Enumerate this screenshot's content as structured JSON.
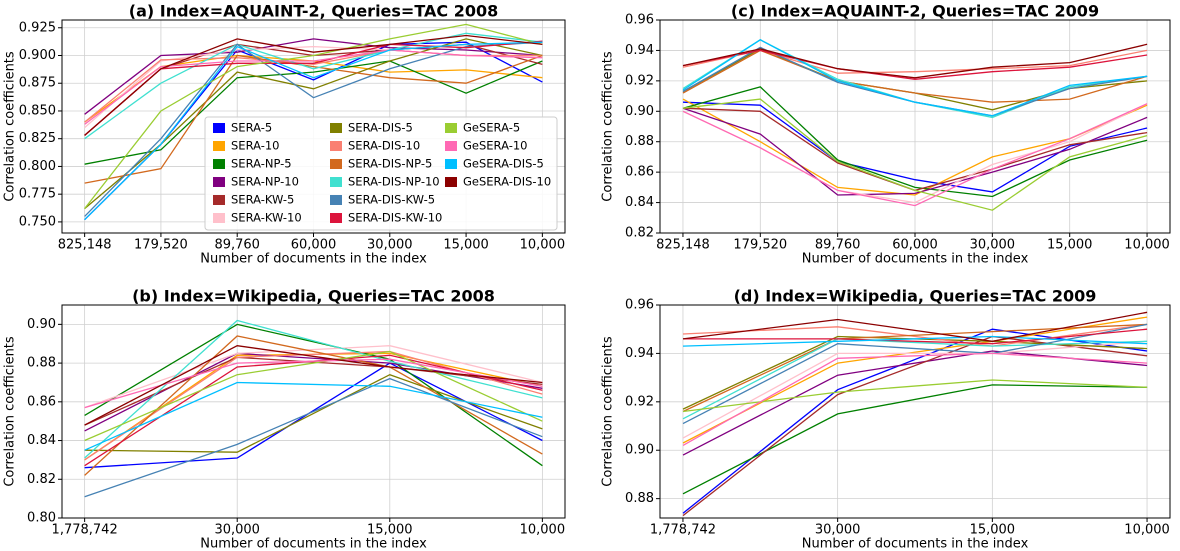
{
  "chart_data": [
    {
      "type": "line",
      "title": "(a) Index=AQUAINT-2, Queries=TAC 2008",
      "x_label": "Number of documents in the index",
      "y_label": "Correlation coefficients",
      "categories": [
        "825,148",
        "179,520",
        "89,760",
        "60,000",
        "30,000",
        "15,000",
        "10,000"
      ],
      "ylim": [
        0.74,
        0.932
      ],
      "yticks": [
        {
          "value": 0.75,
          "label": "0.750"
        },
        {
          "value": 0.775,
          "label": "0.775"
        },
        {
          "value": 0.8,
          "label": "0.800"
        },
        {
          "value": 0.825,
          "label": "0.825"
        },
        {
          "value": 0.85,
          "label": "0.850"
        },
        {
          "value": 0.875,
          "label": "0.875"
        },
        {
          "value": 0.9,
          "label": "0.900"
        },
        {
          "value": 0.925,
          "label": "0.925"
        }
      ],
      "grid": true,
      "legend": "lower center",
      "series": [
        {
          "name": "SERA-5",
          "color": "#0000ff",
          "values": [
            0.752,
            0.82,
            0.905,
            0.878,
            0.91,
            0.912,
            0.876
          ]
        },
        {
          "name": "SERA-10",
          "color": "#ffa500",
          "values": [
            0.84,
            0.89,
            0.9,
            0.895,
            0.885,
            0.887,
            0.88
          ]
        },
        {
          "name": "SERA-NP-5",
          "color": "#008000",
          "values": [
            0.802,
            0.815,
            0.88,
            0.885,
            0.895,
            0.866,
            0.895
          ]
        },
        {
          "name": "SERA-NP-10",
          "color": "#800080",
          "values": [
            0.847,
            0.9,
            0.903,
            0.915,
            0.907,
            0.905,
            0.9
          ]
        },
        {
          "name": "SERA-KW-5",
          "color": "#a52a2a",
          "values": [
            0.828,
            0.888,
            0.91,
            0.9,
            0.905,
            0.91,
            0.892
          ]
        },
        {
          "name": "SERA-KW-10",
          "color": "#ffc0cb",
          "values": [
            0.835,
            0.895,
            0.905,
            0.908,
            0.905,
            0.9,
            0.9
          ]
        },
        {
          "name": "SERA-DIS-5",
          "color": "#808000",
          "values": [
            0.762,
            0.82,
            0.885,
            0.87,
            0.895,
            0.915,
            0.9
          ]
        },
        {
          "name": "SERA-DIS-10",
          "color": "#fa8072",
          "values": [
            0.84,
            0.896,
            0.898,
            0.892,
            0.905,
            0.9,
            0.9
          ]
        },
        {
          "name": "SERA-DIS-NP-5",
          "color": "#d2691e",
          "values": [
            0.785,
            0.798,
            0.9,
            0.89,
            0.88,
            0.875,
            0.9
          ]
        },
        {
          "name": "SERA-DIS-NP-10",
          "color": "#40e0d0",
          "values": [
            0.825,
            0.875,
            0.91,
            0.888,
            0.905,
            0.92,
            0.912
          ]
        },
        {
          "name": "SERA-DIS-KW-5",
          "color": "#4682b4",
          "values": [
            0.755,
            0.825,
            0.91,
            0.862,
            0.888,
            0.908,
            0.912
          ]
        },
        {
          "name": "SERA-DIS-KW-10",
          "color": "#dc143c",
          "values": [
            0.828,
            0.888,
            0.893,
            0.893,
            0.91,
            0.907,
            0.913
          ]
        },
        {
          "name": "GeSERA-5",
          "color": "#9acd32",
          "values": [
            0.762,
            0.85,
            0.89,
            0.9,
            0.915,
            0.928,
            0.91
          ]
        },
        {
          "name": "GeSERA-10",
          "color": "#ff69b4",
          "values": [
            0.838,
            0.89,
            0.895,
            0.895,
            0.905,
            0.9,
            0.898
          ]
        },
        {
          "name": "GeSERA-DIS-5",
          "color": "#00bfff",
          "values": [
            0.752,
            0.82,
            0.908,
            0.88,
            0.905,
            0.91,
            0.912
          ]
        },
        {
          "name": "GeSERA-DIS-10",
          "color": "#8b0000",
          "values": [
            0.828,
            0.888,
            0.915,
            0.903,
            0.91,
            0.918,
            0.91
          ]
        }
      ]
    },
    {
      "type": "line",
      "title": "(c) Index=AQUAINT-2, Queries=TAC 2009",
      "x_label": "Number of documents in the index",
      "y_label": "Correlation coefficients",
      "categories": [
        "825,148",
        "179,520",
        "89,760",
        "60,000",
        "30,000",
        "15,000",
        "10,000"
      ],
      "ylim": [
        0.82,
        0.96
      ],
      "yticks": [
        0.82,
        0.84,
        0.86,
        0.88,
        {
          "value": 0.9,
          "label": "0.90"
        },
        0.92,
        0.94,
        0.96
      ],
      "grid": true,
      "series": [
        {
          "name": "SERA-5",
          "color": "#0000ff",
          "values": [
            0.906,
            0.904,
            0.867,
            0.855,
            0.847,
            0.877,
            0.889
          ]
        },
        {
          "name": "SERA-10",
          "color": "#ffa500",
          "values": [
            0.908,
            0.88,
            0.85,
            0.845,
            0.87,
            0.882,
            0.904
          ]
        },
        {
          "name": "SERA-NP-5",
          "color": "#008000",
          "values": [
            0.902,
            0.916,
            0.868,
            0.85,
            0.844,
            0.868,
            0.881
          ]
        },
        {
          "name": "SERA-NP-10",
          "color": "#800080",
          "values": [
            0.902,
            0.885,
            0.845,
            0.846,
            0.86,
            0.875,
            0.896
          ]
        },
        {
          "name": "SERA-KW-5",
          "color": "#a52a2a",
          "values": [
            0.902,
            0.9,
            0.866,
            0.848,
            0.862,
            0.878,
            0.886
          ]
        },
        {
          "name": "SERA-KW-10",
          "color": "#ffc0cb",
          "values": [
            0.9,
            0.876,
            0.848,
            0.84,
            0.865,
            0.88,
            0.905
          ]
        },
        {
          "name": "SERA-DIS-5",
          "color": "#808000",
          "values": [
            0.913,
            0.941,
            0.92,
            0.912,
            0.901,
            0.915,
            0.92
          ]
        },
        {
          "name": "SERA-DIS-10",
          "color": "#fa8072",
          "values": [
            0.929,
            0.94,
            0.925,
            0.926,
            0.928,
            0.93,
            0.94
          ]
        },
        {
          "name": "SERA-DIS-NP-5",
          "color": "#d2691e",
          "values": [
            0.912,
            0.94,
            0.92,
            0.912,
            0.906,
            0.908,
            0.923
          ]
        },
        {
          "name": "SERA-DIS-NP-10",
          "color": "#40e0d0",
          "values": [
            0.915,
            0.947,
            0.921,
            0.906,
            0.896,
            0.916,
            0.923
          ]
        },
        {
          "name": "SERA-DIS-KW-5",
          "color": "#4682b4",
          "values": [
            0.913,
            0.942,
            0.919,
            0.906,
            0.897,
            0.915,
            0.923
          ]
        },
        {
          "name": "SERA-DIS-KW-10",
          "color": "#dc143c",
          "values": [
            0.93,
            0.94,
            0.928,
            0.921,
            0.926,
            0.929,
            0.937
          ]
        },
        {
          "name": "GeSERA-5",
          "color": "#9acd32",
          "values": [
            0.902,
            0.908,
            0.867,
            0.848,
            0.835,
            0.87,
            0.884
          ]
        },
        {
          "name": "GeSERA-10",
          "color": "#ff69b4",
          "values": [
            0.9,
            0.876,
            0.848,
            0.838,
            0.862,
            0.882,
            0.905
          ]
        },
        {
          "name": "GeSERA-DIS-5",
          "color": "#00bfff",
          "values": [
            0.914,
            0.947,
            0.92,
            0.906,
            0.897,
            0.917,
            0.923
          ]
        },
        {
          "name": "GeSERA-DIS-10",
          "color": "#8b0000",
          "values": [
            0.93,
            0.941,
            0.928,
            0.922,
            0.929,
            0.932,
            0.944
          ]
        }
      ]
    },
    {
      "type": "line",
      "title": "(b) Index=Wikipedia, Queries=TAC 2008",
      "x_label": "Number of documents in the index",
      "y_label": "Correlation coefficients",
      "categories": [
        "1,778,742",
        "30,000",
        "15,000",
        "10,000"
      ],
      "ylim": [
        0.8,
        0.91
      ],
      "yticks": [
        {
          "value": 0.8,
          "label": "0.80"
        },
        0.82,
        0.84,
        0.86,
        0.88,
        {
          "value": 0.9,
          "label": "0.90"
        }
      ],
      "grid": true,
      "series": [
        {
          "name": "SERA-5",
          "color": "#0000ff",
          "values": [
            0.826,
            0.831,
            0.88,
            0.84
          ]
        },
        {
          "name": "SERA-10",
          "color": "#ffa500",
          "values": [
            0.83,
            0.884,
            0.885,
            0.868
          ]
        },
        {
          "name": "SERA-NP-5",
          "color": "#008000",
          "values": [
            0.853,
            0.9,
            0.882,
            0.827
          ]
        },
        {
          "name": "SERA-NP-10",
          "color": "#800080",
          "values": [
            0.845,
            0.885,
            0.88,
            0.867
          ]
        },
        {
          "name": "SERA-KW-5",
          "color": "#a52a2a",
          "values": [
            0.848,
            0.883,
            0.878,
            0.869
          ]
        },
        {
          "name": "SERA-KW-10",
          "color": "#ffc0cb",
          "values": [
            0.857,
            0.885,
            0.889,
            0.87
          ]
        },
        {
          "name": "SERA-DIS-5",
          "color": "#808000",
          "values": [
            0.835,
            0.834,
            0.874,
            0.846
          ]
        },
        {
          "name": "SERA-DIS-10",
          "color": "#fa8072",
          "values": [
            0.83,
            0.883,
            0.886,
            0.864
          ]
        },
        {
          "name": "SERA-DIS-NP-5",
          "color": "#d2691e",
          "values": [
            0.822,
            0.894,
            0.878,
            0.833
          ]
        },
        {
          "name": "SERA-DIS-NP-10",
          "color": "#40e0d0",
          "values": [
            0.831,
            0.902,
            0.881,
            0.862
          ]
        },
        {
          "name": "SERA-DIS-KW-5",
          "color": "#4682b4",
          "values": [
            0.811,
            0.838,
            0.872,
            0.842
          ]
        },
        {
          "name": "SERA-DIS-KW-10",
          "color": "#dc143c",
          "values": [
            0.827,
            0.878,
            0.884,
            0.866
          ]
        },
        {
          "name": "GeSERA-5",
          "color": "#9acd32",
          "values": [
            0.84,
            0.874,
            0.886,
            0.85
          ]
        },
        {
          "name": "GeSERA-10",
          "color": "#ff69b4",
          "values": [
            0.857,
            0.88,
            0.882,
            0.868
          ]
        },
        {
          "name": "GeSERA-DIS-5",
          "color": "#00bfff",
          "values": [
            0.835,
            0.87,
            0.868,
            0.852
          ]
        },
        {
          "name": "GeSERA-DIS-10",
          "color": "#8b0000",
          "values": [
            0.848,
            0.889,
            0.878,
            0.87
          ]
        }
      ]
    },
    {
      "type": "line",
      "title": "(d) Index=Wikipedia, Queries=TAC 2009",
      "x_label": "Number of documents in the index",
      "y_label": "Correlation coefficients",
      "categories": [
        "1,778,742",
        "30,000",
        "15,000",
        "10,000"
      ],
      "ylim": [
        0.872,
        0.96
      ],
      "yticks": [
        0.88,
        {
          "value": 0.9,
          "label": "0.90"
        },
        0.92,
        0.94,
        0.96
      ],
      "grid": true,
      "series": [
        {
          "name": "SERA-5",
          "color": "#0000ff",
          "values": [
            0.874,
            0.925,
            0.95,
            0.941
          ]
        },
        {
          "name": "SERA-10",
          "color": "#ffa500",
          "values": [
            0.903,
            0.936,
            0.945,
            0.955
          ]
        },
        {
          "name": "SERA-NP-5",
          "color": "#008000",
          "values": [
            0.882,
            0.915,
            0.927,
            0.926
          ]
        },
        {
          "name": "SERA-NP-10",
          "color": "#800080",
          "values": [
            0.898,
            0.931,
            0.941,
            0.935
          ]
        },
        {
          "name": "SERA-KW-5",
          "color": "#a52a2a",
          "values": [
            0.873,
            0.923,
            0.947,
            0.939
          ]
        },
        {
          "name": "SERA-KW-10",
          "color": "#ffc0cb",
          "values": [
            0.905,
            0.94,
            0.94,
            0.945
          ]
        },
        {
          "name": "SERA-DIS-5",
          "color": "#808000",
          "values": [
            0.917,
            0.947,
            0.945,
            0.942
          ]
        },
        {
          "name": "SERA-DIS-10",
          "color": "#fa8072",
          "values": [
            0.948,
            0.951,
            0.943,
            0.952
          ]
        },
        {
          "name": "SERA-DIS-NP-5",
          "color": "#d2691e",
          "values": [
            0.916,
            0.946,
            0.949,
            0.952
          ]
        },
        {
          "name": "SERA-DIS-NP-10",
          "color": "#40e0d0",
          "values": [
            0.913,
            0.946,
            0.943,
            0.945
          ]
        },
        {
          "name": "SERA-DIS-KW-5",
          "color": "#4682b4",
          "values": [
            0.911,
            0.944,
            0.94,
            0.952
          ]
        },
        {
          "name": "SERA-DIS-KW-10",
          "color": "#dc143c",
          "values": [
            0.946,
            0.946,
            0.944,
            0.95
          ]
        },
        {
          "name": "GeSERA-5",
          "color": "#9acd32",
          "values": [
            0.916,
            0.924,
            0.929,
            0.926
          ]
        },
        {
          "name": "GeSERA-10",
          "color": "#ff69b4",
          "values": [
            0.902,
            0.938,
            0.94,
            0.936
          ]
        },
        {
          "name": "GeSERA-DIS-5",
          "color": "#00bfff",
          "values": [
            0.943,
            0.945,
            0.947,
            0.944
          ]
        },
        {
          "name": "GeSERA-DIS-10",
          "color": "#8b0000",
          "values": [
            0.946,
            0.954,
            0.945,
            0.957
          ]
        }
      ]
    }
  ]
}
